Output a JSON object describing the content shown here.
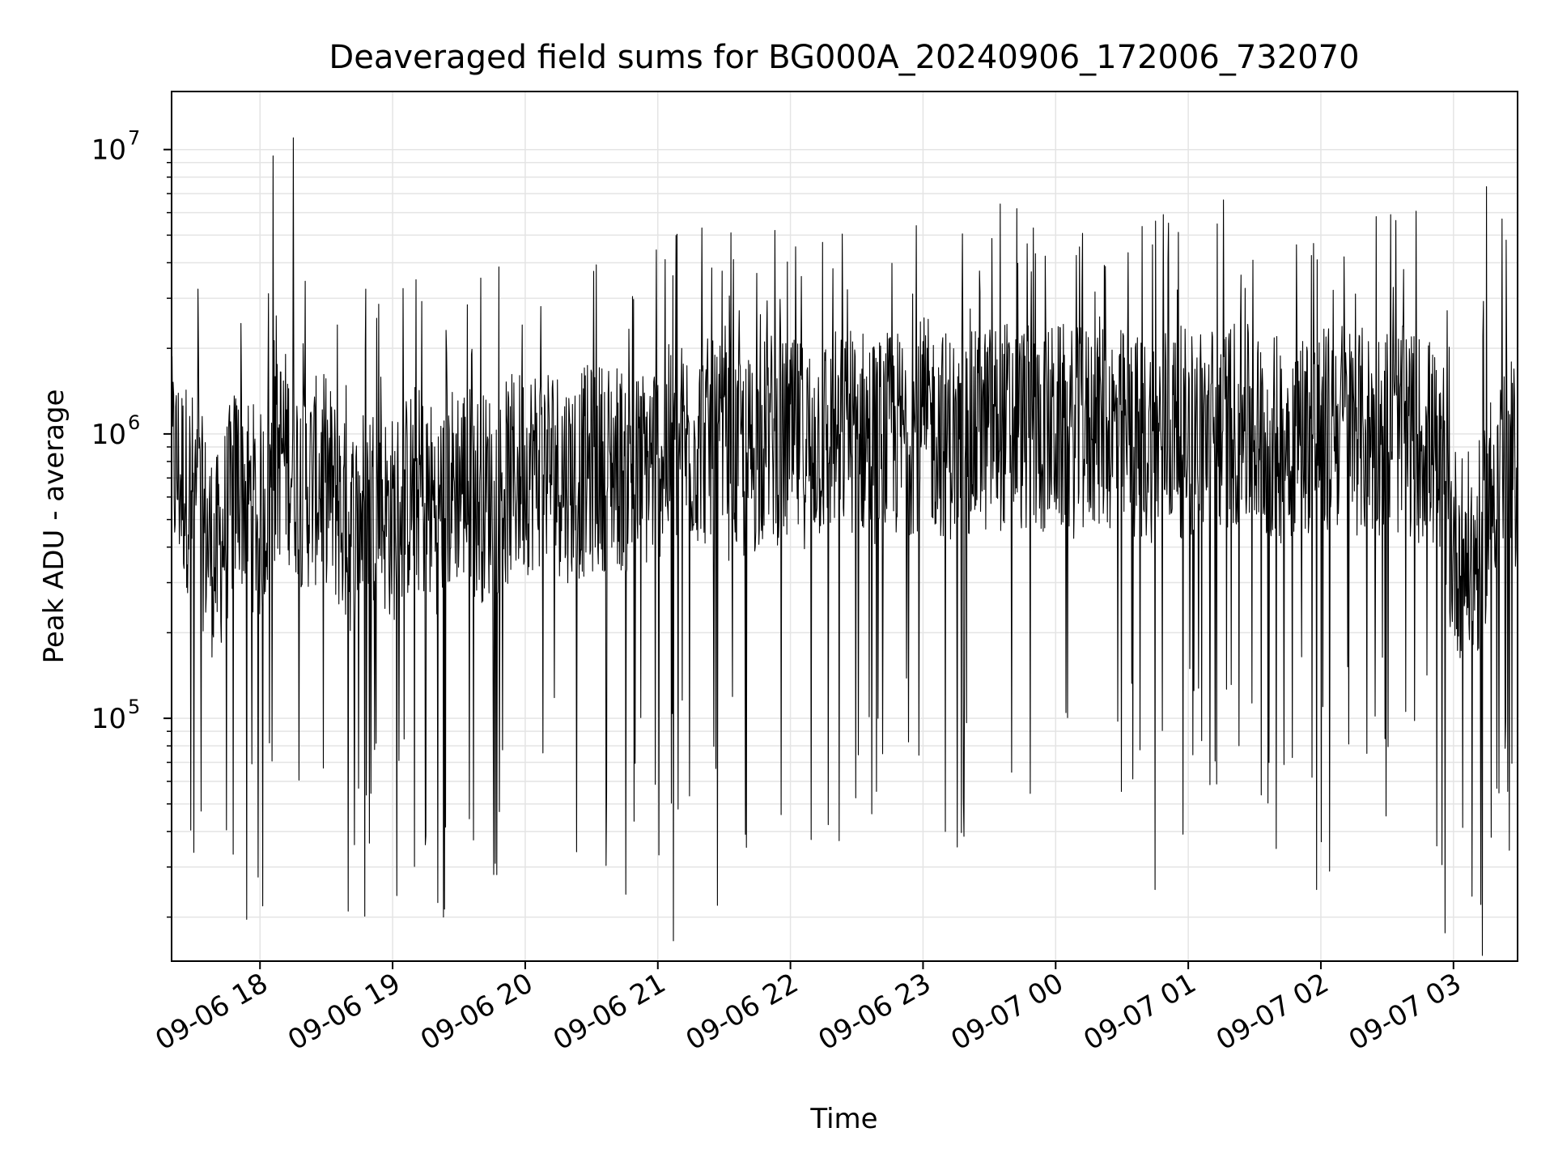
{
  "chart_data": {
    "type": "line",
    "title": "Deaveraged field sums for BG000A_20240906_172006_732070",
    "xlabel": "Time",
    "ylabel": "Peak ADU - average",
    "y_scale": "log",
    "ylim": [
      14000,
      16000000
    ],
    "xlim": [
      "2024-09-06 17:20",
      "2024-09-07 03:29"
    ],
    "grid": true,
    "x_ticks": [
      {
        "t": "2024-09-06 18:00",
        "label": "09-06 18"
      },
      {
        "t": "2024-09-06 19:00",
        "label": "09-06 19"
      },
      {
        "t": "2024-09-06 20:00",
        "label": "09-06 20"
      },
      {
        "t": "2024-09-06 21:00",
        "label": "09-06 21"
      },
      {
        "t": "2024-09-06 22:00",
        "label": "09-06 22"
      },
      {
        "t": "2024-09-06 23:00",
        "label": "09-06 23"
      },
      {
        "t": "2024-09-07 00:00",
        "label": "09-07 00"
      },
      {
        "t": "2024-09-07 01:00",
        "label": "09-07 01"
      },
      {
        "t": "2024-09-07 02:00",
        "label": "09-07 02"
      },
      {
        "t": "2024-09-07 03:00",
        "label": "09-07 03"
      }
    ],
    "y_ticks": [
      {
        "value": 100000,
        "base": "10",
        "exp": "5"
      },
      {
        "value": 1000000,
        "base": "10",
        "exp": "6"
      },
      {
        "value": 10000000,
        "base": "10",
        "exp": "7"
      }
    ],
    "series": [
      {
        "color": "#000000",
        "x": [
          "2024-09-06 17:20",
          "2024-09-06 17:30",
          "2024-09-06 17:40",
          "2024-09-06 17:50",
          "2024-09-06 18:00",
          "2024-09-06 18:10",
          "2024-09-06 18:20",
          "2024-09-06 18:30",
          "2024-09-06 18:40",
          "2024-09-06 18:50",
          "2024-09-06 19:00",
          "2024-09-06 19:10",
          "2024-09-06 19:20",
          "2024-09-06 19:30",
          "2024-09-06 19:40",
          "2024-09-06 19:50",
          "2024-09-06 20:00",
          "2024-09-06 20:10",
          "2024-09-06 20:20",
          "2024-09-06 20:30",
          "2024-09-06 20:40",
          "2024-09-06 20:50",
          "2024-09-06 21:00",
          "2024-09-06 21:10",
          "2024-09-06 21:20",
          "2024-09-06 21:30",
          "2024-09-06 21:40",
          "2024-09-06 21:50",
          "2024-09-06 22:00",
          "2024-09-06 22:10",
          "2024-09-06 22:20",
          "2024-09-06 22:30",
          "2024-09-06 22:40",
          "2024-09-06 22:50",
          "2024-09-06 23:00",
          "2024-09-06 23:10",
          "2024-09-06 23:20",
          "2024-09-06 23:30",
          "2024-09-06 23:40",
          "2024-09-06 23:50",
          "2024-09-07 00:00",
          "2024-09-07 00:10",
          "2024-09-07 00:20",
          "2024-09-07 00:30",
          "2024-09-07 00:40",
          "2024-09-07 00:50",
          "2024-09-07 01:00",
          "2024-09-07 01:10",
          "2024-09-07 01:20",
          "2024-09-07 01:30",
          "2024-09-07 01:40",
          "2024-09-07 01:50",
          "2024-09-07 02:00",
          "2024-09-07 02:10",
          "2024-09-07 02:20",
          "2024-09-07 02:30",
          "2024-09-07 02:40",
          "2024-09-07 02:50",
          "2024-09-07 03:00",
          "2024-09-07 03:10",
          "2024-09-07 03:20",
          "2024-09-07 03:29"
        ],
        "y": [
          800000,
          600000,
          350000,
          700000,
          500000,
          900000,
          650000,
          700000,
          450000,
          600000,
          500000,
          650000,
          550000,
          700000,
          600000,
          650000,
          750000,
          800000,
          700000,
          750000,
          800000,
          700000,
          850000,
          900000,
          950000,
          850000,
          800000,
          1000000,
          900000,
          950000,
          1000000,
          1050000,
          950000,
          1000000,
          1100000,
          1000000,
          950000,
          1050000,
          1100000,
          1000000,
          1050000,
          1000000,
          1100000,
          1000000,
          950000,
          1050000,
          1000000,
          1050000,
          1100000,
          1000000,
          950000,
          1050000,
          1000000,
          1100000,
          1000000,
          1050000,
          1000000,
          950000,
          400000,
          350000,
          800000,
          750000
        ],
        "peaks": [
          [
            "2024-09-06 18:06",
            9500000
          ],
          [
            "2024-09-06 18:15",
            11000000
          ],
          [
            "2024-09-06 21:20",
            5300000
          ],
          [
            "2024-09-06 23:50",
            5300000
          ],
          [
            "2024-09-07 03:15",
            7400000
          ],
          [
            "2024-09-07 03:22",
            5700000
          ]
        ],
        "dips": [
          [
            "2024-09-06 18:40",
            21000
          ],
          [
            "2024-09-06 19:23",
            20000
          ],
          [
            "2024-09-06 21:07",
            16500
          ],
          [
            "2024-09-06 21:27",
            22000
          ],
          [
            "2024-09-06 23:10",
            40000
          ],
          [
            "2024-09-07 00:45",
            25000
          ],
          [
            "2024-09-07 01:58",
            25000
          ],
          [
            "2024-09-07 02:04",
            29000
          ]
        ]
      }
    ]
  }
}
